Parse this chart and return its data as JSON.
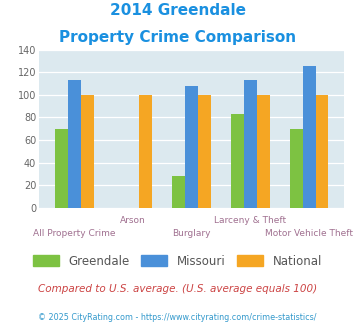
{
  "title_line1": "2014 Greendale",
  "title_line2": "Property Crime Comparison",
  "categories": [
    "All Property Crime",
    "Arson",
    "Burglary",
    "Larceny & Theft",
    "Motor Vehicle Theft"
  ],
  "cat_labels_top": [
    "Arson",
    "Larceny & Theft"
  ],
  "cat_labels_bottom": [
    "All Property Crime",
    "Burglary",
    "Motor Vehicle Theft"
  ],
  "greendale": [
    70,
    0,
    28,
    83,
    70
  ],
  "missouri": [
    113,
    0,
    108,
    113,
    125
  ],
  "national": [
    100,
    100,
    100,
    100,
    100
  ],
  "color_greendale": "#7dc242",
  "color_missouri": "#4a90d9",
  "color_national": "#f5a623",
  "ylim": [
    0,
    140
  ],
  "yticks": [
    0,
    20,
    40,
    60,
    80,
    100,
    120,
    140
  ],
  "footnote1": "Compared to U.S. average. (U.S. average equals 100)",
  "footnote2": "© 2025 CityRating.com - https://www.cityrating.com/crime-statistics/",
  "bg_color": "#dce9ef",
  "legend_labels": [
    "Greendale",
    "Missouri",
    "National"
  ]
}
